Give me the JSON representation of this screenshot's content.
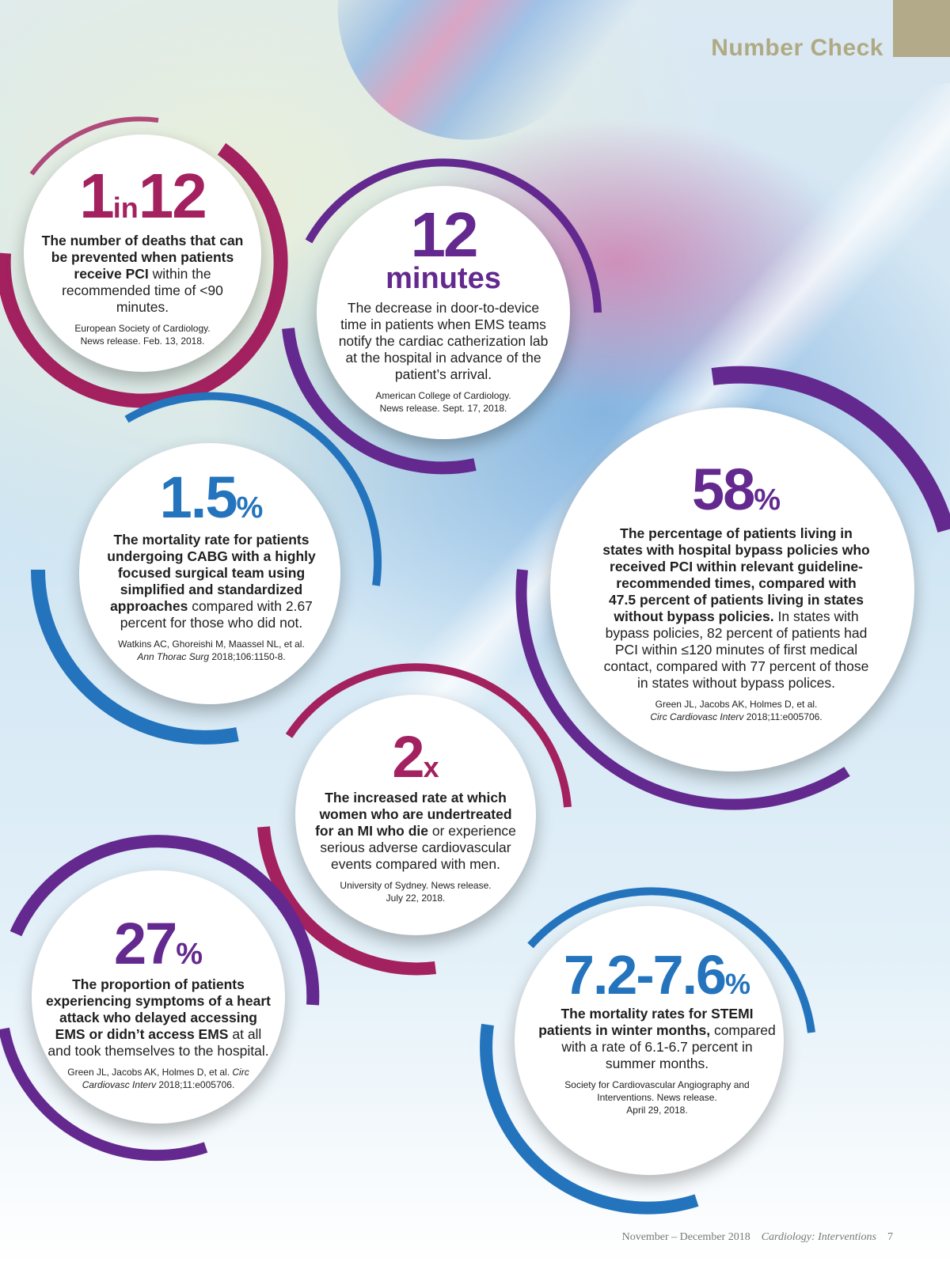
{
  "header": {
    "section_title": "Number Check",
    "accent_color": "#b0aa84"
  },
  "colors": {
    "magenta": "#a3215f",
    "purple": "#64298f",
    "blue": "#2474bd"
  },
  "stats": [
    {
      "value_main": "1",
      "value_join": "in",
      "value_tail": "12",
      "bold_text": "The number of deaths that can be prevented when patients receive PCI",
      "plain_text": "within the recommended time of <90 minutes.",
      "source_1": "European Society of Cardiology.",
      "source_2": "News release. Feb. 13, 2018.",
      "color": "magenta"
    },
    {
      "value_main": "12",
      "value_unit": "minutes",
      "plain_text": "The decrease in door-to-device time in patients when EMS teams notify the cardiac catherization lab at the hospital in advance of the patient’s arrival.",
      "source_1": "American College of Cardiology.",
      "source_2": "News release. Sept. 17, 2018.",
      "color": "purple"
    },
    {
      "value_main": "1.5",
      "value_unit": "%",
      "bold_text": "The mortality rate for patients undergoing CABG with a highly focused surgical team using simplified and standardized approaches",
      "plain_text": "compared with 2.67 percent for those who did not.",
      "source_1": "Watkins AC, Ghoreishi M, Maassel NL, et al.",
      "source_journal": "Ann Thorac Surg",
      "source_2": "2018;106:1150-8.",
      "color": "blue"
    },
    {
      "value_main": "58",
      "value_unit": "%",
      "bold_text": "The percentage of patients living in states with hospital bypass policies who received PCI within relevant guideline-recommended times, compared with 47.5 percent of patients living in states without bypass policies.",
      "plain_text": "In states with bypass policies, 82 percent of patients had PCI within ≤120 minutes of first medical contact, compared with 77 percent of those in states without bypass polices.",
      "source_1": "Green JL, Jacobs AK, Holmes D, et al.",
      "source_journal": "Circ Cardiovasc Interv",
      "source_2": "2018;11:e005706.",
      "color": "purple"
    },
    {
      "value_main": "2",
      "value_unit": "x",
      "bold_text": "The increased rate at which women who are undertreated for an MI who die",
      "plain_text": "or experience serious adverse cardiovascular events compared with men.",
      "source_1": "University of Sydney. News release.",
      "source_2": "July 22, 2018.",
      "color": "magenta"
    },
    {
      "value_main": "27",
      "value_unit": "%",
      "bold_text": "The proportion of patients experiencing symptoms of a heart attack who delayed accessing EMS or didn’t access EMS",
      "plain_text": "at all and took themselves to the hospital.",
      "source_1": "Green JL, Jacobs AK, Holmes D, et al.",
      "source_journal": "Circ Cardiovasc Interv",
      "source_2": "2018;11:e005706.",
      "color": "purple"
    },
    {
      "value_main": "7.2-7.6",
      "value_unit": "%",
      "bold_text": "The mortality rates for STEMI patients in winter months,",
      "plain_text": "compared with a rate of 6.1-6.7 percent in summer months.",
      "source_1": "Society for Cardiovascular Angiography and Interventions. News release.",
      "source_2": "April 29, 2018.",
      "color": "blue"
    }
  ],
  "footer": {
    "issue": "November – December 2018",
    "publication": "Cardiology: Interventions",
    "page_number": "7"
  }
}
